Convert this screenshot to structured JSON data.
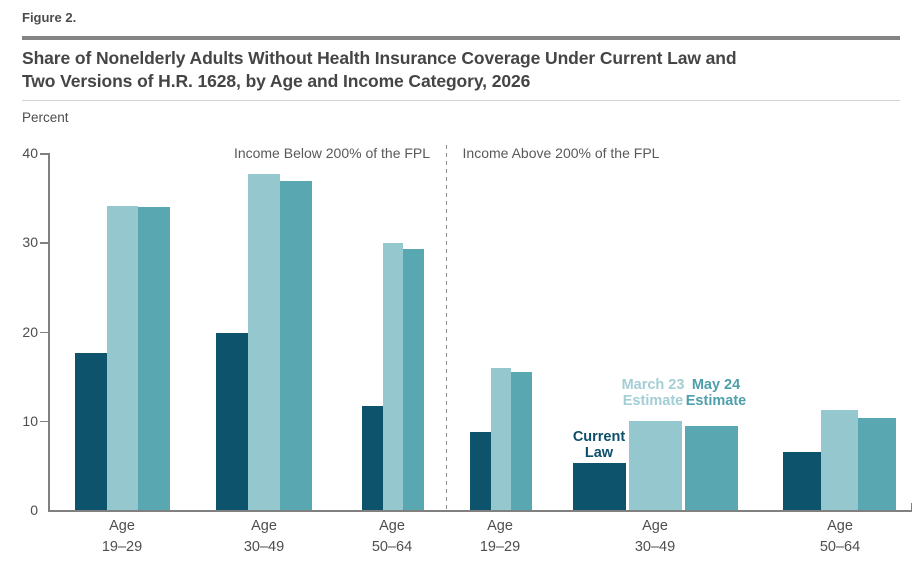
{
  "figure_label": "Figure 2.",
  "title_line1": "Share of Nonelderly Adults Without Health Insurance Coverage Under Current Law and",
  "title_line2": "Two Versions of H.R. 1628, by Age and Income Category, 2026",
  "unit_label": "Percent",
  "chart_data": {
    "type": "bar",
    "title": "Share of Nonelderly Adults Without Health Insurance Coverage Under Current Law and Two Versions of H.R. 1628, by Age and Income Category, 2026",
    "ylabel": "Percent",
    "ylim": [
      0,
      40
    ],
    "yticks": [
      0,
      10,
      20,
      30,
      40
    ],
    "grid": false,
    "legend": "inline-annotations",
    "series": [
      {
        "name": "Current Law",
        "key": "current_law",
        "color": "#0c536b"
      },
      {
        "name": "March 23 Estimate",
        "key": "march_23",
        "color": "#95c8ce"
      },
      {
        "name": "May 24 Estimate",
        "key": "may_24",
        "color": "#58a7b1"
      }
    ],
    "sections": [
      {
        "label": "Income Below 200% of the FPL",
        "categories": [
          "Age 19–29",
          "Age 30–49",
          "Age 50–64"
        ],
        "groups": [
          {
            "category_line1": "Age",
            "category_line2": "19–29",
            "values": [
              17.6,
              34.1,
              33.9
            ]
          },
          {
            "category_line1": "Age",
            "category_line2": "30–49",
            "values": [
              19.8,
              37.7,
              36.9
            ]
          },
          {
            "category_line1": "Age",
            "category_line2": "50–64",
            "values": [
              11.7,
              29.9,
              29.2
            ]
          }
        ]
      },
      {
        "label": "Income Above 200% of the FPL",
        "categories": [
          "Age 19–29",
          "Age 30–49",
          "Age 50–64"
        ],
        "groups": [
          {
            "category_line1": "Age",
            "category_line2": "19–29",
            "values": [
              8.7,
              15.9,
              15.5
            ]
          },
          {
            "category_line1": "Age",
            "category_line2": "30–49",
            "values": [
              5.3,
              10.0,
              9.4
            ]
          },
          {
            "category_line1": "Age",
            "category_line2": "50–64",
            "values": [
              6.5,
              11.2,
              10.3
            ]
          }
        ]
      }
    ],
    "annotations": [
      {
        "key": "current_law",
        "line1": "Current",
        "line2": "Law",
        "color": "#0d4f6a"
      },
      {
        "key": "march_23",
        "line1": "March 23",
        "line2": "Estimate",
        "color": "#a2ced4"
      },
      {
        "key": "may_24",
        "line1": "May 24",
        "line2": "Estimate",
        "color": "#4d9fab"
      }
    ]
  }
}
